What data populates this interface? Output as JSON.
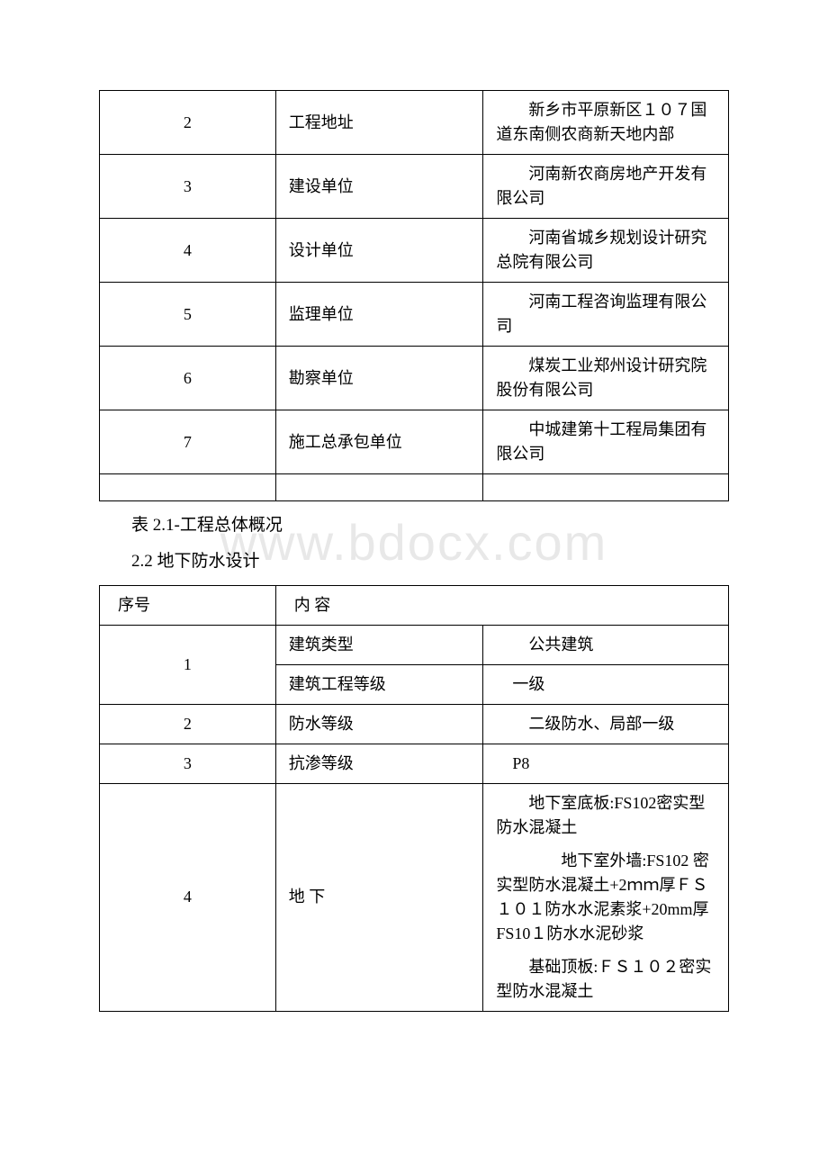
{
  "watermark": "www.bdocx.com",
  "table1": {
    "rows": [
      {
        "num": "2",
        "label": "工程地址",
        "value": "　　新乡市平原新区１０７国道东南侧农商新天地内部"
      },
      {
        "num": "3",
        "label": "建设单位",
        "value": "　　河南新农商房地产开发有限公司"
      },
      {
        "num": "4",
        "label": "设计单位",
        "value": "　　河南省城乡规划设计研究总院有限公司"
      },
      {
        "num": "5",
        "label": "监理单位",
        "value": "　　河南工程咨询监理有限公司"
      },
      {
        "num": "6",
        "label": "勘察单位",
        "value": "　　煤炭工业郑州设计研究院股份有限公司"
      },
      {
        "num": "7",
        "label": "施工总承包单位",
        "value": "　　中城建第十工程局集团有限公司"
      }
    ]
  },
  "caption1": "表 2.1-工程总体概况",
  "section_title": "2.2 地下防水设计",
  "table2": {
    "header": {
      "num": "序号",
      "content": "内 容"
    },
    "rows": [
      {
        "num": "1",
        "sub": [
          {
            "label": "建筑类型",
            "value": "　　公共建筑"
          },
          {
            "label": "建筑工程等级",
            "value": "　一级"
          }
        ]
      },
      {
        "num": "2",
        "label": "防水等级",
        "value": "　　二级防水、局部一级"
      },
      {
        "num": "3",
        "label": "抗渗等级",
        "value": "　P8"
      },
      {
        "num": "4",
        "label": "地 下",
        "value_paras": [
          "　　地下室底板:FS102密实型防水混凝土",
          "　　　　地下室外墙:FS102 密实型防水混凝土+2ｍｍ厚ＦＳ１０１防水水泥素浆+20mm厚 FS10１防水水泥砂浆",
          "　　基础顶板:ＦＳ１０２密实型防水混凝土"
        ]
      }
    ]
  }
}
